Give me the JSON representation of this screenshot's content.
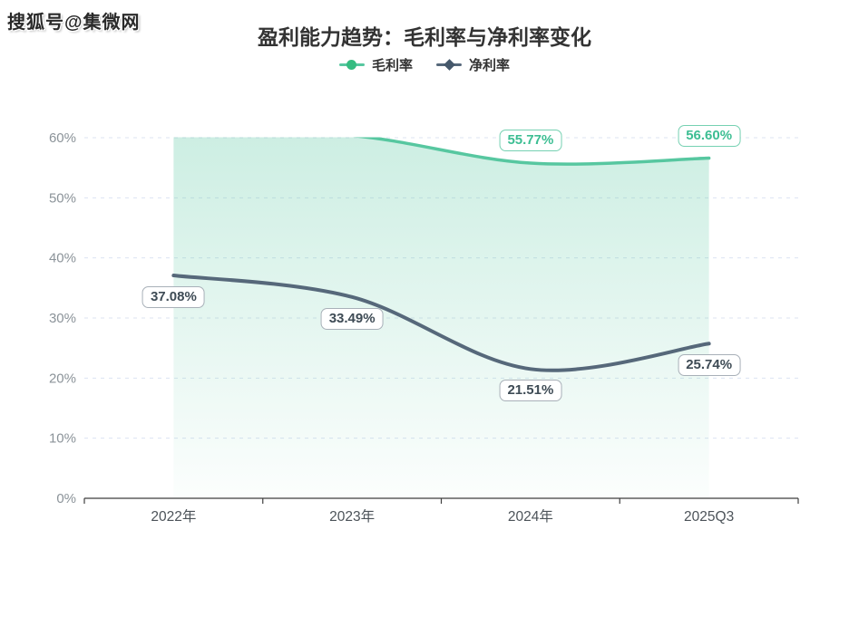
{
  "watermark": {
    "text": "搜狐号@集微网"
  },
  "chart_data": {
    "type": "line",
    "title": "盈利能力趋势：毛利率与净利率变化",
    "categories": [
      "2022年",
      "2023年",
      "2024年",
      "2025Q3"
    ],
    "series": [
      {
        "name": "毛利率",
        "color": "#57C7A0",
        "marker": "circle",
        "marker_color": "#35BC81",
        "smooth": true,
        "area": true,
        "area_gradient": [
          "rgba(87,199,160,0.30)",
          "rgba(87,199,160,0.02)"
        ],
        "values": [
          60.9,
          60.35,
          55.77,
          56.6
        ],
        "clipped_at_top": [
          true,
          true,
          false,
          false
        ],
        "point_labels": [
          null,
          null,
          "55.77%",
          "56.60%"
        ],
        "label_offset_y": -25,
        "label_text_color": "#3DBE93",
        "label_border_color": "#76D1B2",
        "line_width": 3.5
      },
      {
        "name": "净利率",
        "color": "#56687A",
        "marker": "diamond",
        "marker_color": "#45586B",
        "smooth": true,
        "area": false,
        "values": [
          37.08,
          33.49,
          21.51,
          25.74
        ],
        "clipped_at_top": [
          false,
          false,
          false,
          false
        ],
        "point_labels": [
          "37.08%",
          "33.49%",
          "21.51%",
          "25.74%"
        ],
        "label_offset_y": 24,
        "label_text_color": "#3E4B55",
        "label_border_color": "#A8B0B8",
        "line_width": 4
      }
    ],
    "ylim": [
      0,
      60
    ],
    "yticks": [
      0,
      10,
      20,
      30,
      40,
      50,
      60
    ],
    "ytick_suffix": "%",
    "grid": {
      "horizontal": true,
      "style": "dashed",
      "color": "#DCE3F2"
    },
    "axis": {
      "line_color": "#3F3F3F",
      "x_label_color": "#4C5359",
      "y_label_color": "#8B9399"
    },
    "legend_position": "top"
  }
}
